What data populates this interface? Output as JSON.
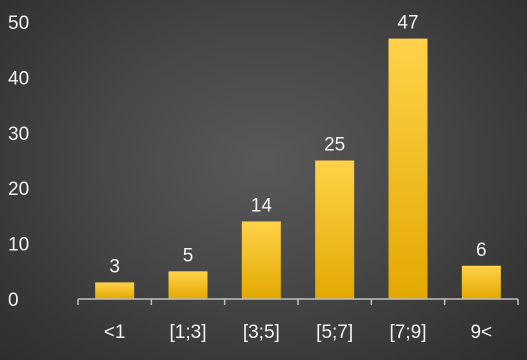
{
  "chart_data": {
    "type": "bar",
    "title": "",
    "xlabel": "",
    "ylabel": "",
    "categories": [
      "<1",
      "[1;3]",
      "[3;5]",
      "[5;7]",
      "[7;9]",
      "9<"
    ],
    "values": [
      3,
      5,
      14,
      25,
      47,
      6
    ],
    "ylim": [
      0,
      50
    ],
    "yticks": [
      0,
      10,
      20,
      30,
      40,
      50
    ],
    "data_labels": [
      "3",
      "5",
      "14",
      "25",
      "47",
      "6"
    ],
    "grid": false,
    "legend": "none",
    "colors": {
      "bar_top": "#ffd24a",
      "bar_bottom": "#e3a800",
      "background": "#474747",
      "axis": "#bfbfbf",
      "text": "#f2f2f2"
    }
  }
}
